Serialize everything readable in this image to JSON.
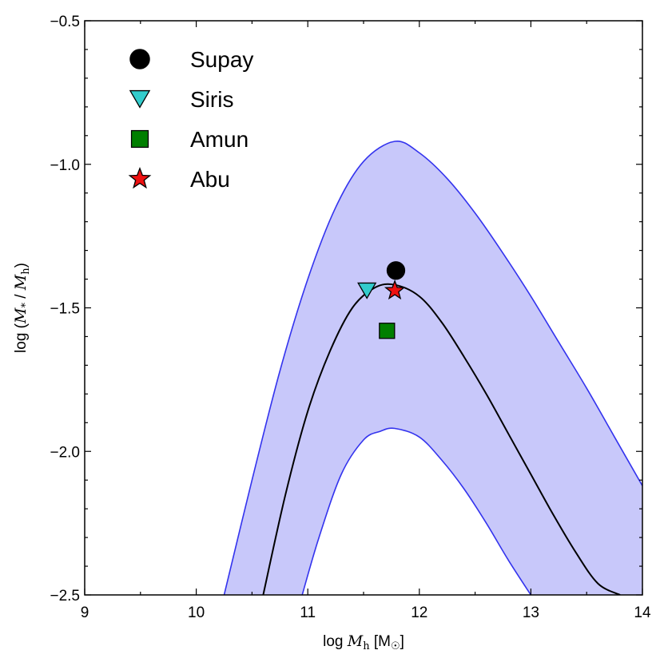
{
  "chart_data": {
    "type": "scatter",
    "xlabel": "log Mh [M☉]",
    "xlabel_parts": {
      "prefix": "log ",
      "var": "M",
      "sub": "h",
      "unit_open": " [M",
      "unit_sub": "☉",
      "unit_close": "]"
    },
    "ylabel": "log (M* / Mh)",
    "ylabel_parts": {
      "prefix": "log (",
      "var1": "M",
      "sub1": "*",
      "slash": " / ",
      "var2": "M",
      "sub2": "h",
      "close": ")"
    },
    "xlim": [
      9,
      14
    ],
    "ylim": [
      -2.5,
      -0.5
    ],
    "x_ticks": [
      9,
      10,
      11,
      12,
      13,
      14
    ],
    "x_tick_labels": [
      "9",
      "10",
      "11",
      "12",
      "13",
      "14"
    ],
    "y_ticks": [
      -2.5,
      -2.0,
      -1.5,
      -1.0,
      -0.5
    ],
    "y_tick_labels": [
      "−2.5",
      "−2.0",
      "−1.5",
      "−1.0",
      "−0.5"
    ],
    "relation": {
      "name": "",
      "peak_x": 11.78,
      "peak_y": -1.42,
      "center_x": [
        10.6,
        10.8,
        11.0,
        11.2,
        11.4,
        11.6,
        11.78,
        12.0,
        12.2,
        12.4,
        12.6,
        12.8,
        13.0,
        13.2,
        13.4,
        13.6,
        13.8
      ],
      "center_y": [
        -2.5,
        -2.15,
        -1.86,
        -1.65,
        -1.5,
        -1.43,
        -1.42,
        -1.46,
        -1.55,
        -1.67,
        -1.8,
        -1.94,
        -2.08,
        -2.22,
        -2.35,
        -2.46,
        -2.5
      ],
      "band_upper_x": [
        10.25,
        10.5,
        10.75,
        11.0,
        11.25,
        11.5,
        11.78,
        12.0,
        12.25,
        12.5,
        12.75,
        13.0,
        13.25,
        13.5,
        13.75,
        14.0
      ],
      "band_upper_y": [
        -2.5,
        -2.1,
        -1.72,
        -1.4,
        -1.15,
        -0.99,
        -0.92,
        -0.96,
        -1.05,
        -1.17,
        -1.31,
        -1.46,
        -1.62,
        -1.78,
        -1.95,
        -2.12
      ],
      "band_lower_x": [
        10.95,
        11.1,
        11.3,
        11.5,
        11.65,
        11.78,
        12.0,
        12.2,
        12.4,
        12.6,
        12.8,
        13.0
      ],
      "band_lower_y": [
        -2.5,
        -2.3,
        -2.08,
        -1.96,
        -1.93,
        -1.92,
        -1.95,
        -2.03,
        -2.13,
        -2.25,
        -2.38,
        -2.5
      ],
      "band_color": "#c8c8fa",
      "band_edge_color": "#3333ee",
      "line_color": "#000000"
    },
    "series": [
      {
        "name": "Supay",
        "x": 11.79,
        "y": -1.37,
        "marker": "circle",
        "color": "#000000"
      },
      {
        "name": "Siris",
        "x": 11.53,
        "y": -1.44,
        "marker": "triangle-down",
        "color": "#33cccc"
      },
      {
        "name": "Amun",
        "x": 11.71,
        "y": -1.58,
        "marker": "square",
        "color": "#007f00"
      },
      {
        "name": "Abu",
        "x": 11.78,
        "y": -1.44,
        "marker": "star",
        "color": "#ee1111"
      }
    ],
    "legend_position": "top-left",
    "grid": false
  }
}
